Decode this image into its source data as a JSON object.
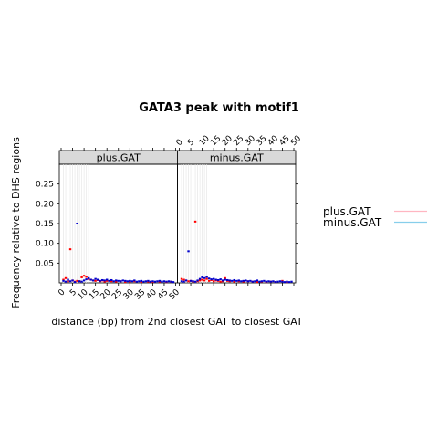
{
  "chart_data": {
    "type": "scatter",
    "title": "GATA3 peak with motif1",
    "xlabel": "distance (bp) from 2nd closest GAT to closest GAT",
    "ylabel": "Frequency relative to DHS regions",
    "xlim": [
      0,
      50
    ],
    "ylim": [
      0,
      0.3
    ],
    "x_ticks": [
      "0",
      "5",
      "10",
      "15",
      "20",
      "25",
      "30",
      "35",
      "40",
      "45",
      "50"
    ],
    "y_ticks": [
      "0.05",
      "0.10",
      "0.15",
      "0.20",
      "0.25"
    ],
    "y_tick_values": [
      0.05,
      0.1,
      0.15,
      0.2,
      0.25
    ],
    "panels": [
      {
        "strip": "plus.GAT",
        "series": [
          {
            "color": "#ff0000",
            "points": [
              [
                1,
                0.008
              ],
              [
                2,
                0.012
              ],
              [
                3,
                0.004
              ],
              [
                4,
                0.085
              ],
              [
                5,
                0.006
              ],
              [
                6,
                0.003
              ],
              [
                7,
                0.005
              ],
              [
                8,
                0.004
              ],
              [
                9,
                0.014
              ],
              [
                10,
                0.018
              ],
              [
                11,
                0.015
              ],
              [
                12,
                0.01
              ],
              [
                13,
                0.008
              ],
              [
                14,
                0.006
              ],
              [
                15,
                0.005
              ],
              [
                16,
                0.007
              ],
              [
                17,
                0.004
              ],
              [
                18,
                0.006
              ],
              [
                19,
                0.003
              ],
              [
                20,
                0.005
              ],
              [
                22,
                0.004
              ],
              [
                24,
                0.003
              ],
              [
                26,
                0.004
              ],
              [
                28,
                0.002
              ],
              [
                30,
                0.003
              ],
              [
                32,
                0.004
              ],
              [
                35,
                0.002
              ],
              [
                38,
                0.003
              ],
              [
                40,
                0.002
              ],
              [
                43,
                0.003
              ],
              [
                46,
                0.002
              ],
              [
                48,
                0.003
              ]
            ]
          },
          {
            "color": "#0000cc",
            "points": [
              [
                1,
                0.005
              ],
              [
                2,
                0.003
              ],
              [
                3,
                0.008
              ],
              [
                4,
                0.004
              ],
              [
                5,
                0.006
              ],
              [
                6,
                0.002
              ],
              [
                7,
                0.15
              ],
              [
                8,
                0.004
              ],
              [
                9,
                0.003
              ],
              [
                10,
                0.006
              ],
              [
                11,
                0.009
              ],
              [
                12,
                0.012
              ],
              [
                13,
                0.008
              ],
              [
                14,
                0.006
              ],
              [
                15,
                0.01
              ],
              [
                16,
                0.008
              ],
              [
                17,
                0.005
              ],
              [
                18,
                0.007
              ],
              [
                19,
                0.006
              ],
              [
                20,
                0.008
              ],
              [
                21,
                0.005
              ],
              [
                22,
                0.007
              ],
              [
                23,
                0.004
              ],
              [
                24,
                0.006
              ],
              [
                25,
                0.005
              ],
              [
                26,
                0.004
              ],
              [
                27,
                0.006
              ],
              [
                28,
                0.005
              ],
              [
                29,
                0.004
              ],
              [
                30,
                0.005
              ],
              [
                31,
                0.004
              ],
              [
                32,
                0.006
              ],
              [
                33,
                0.003
              ],
              [
                34,
                0.004
              ],
              [
                35,
                0.005
              ],
              [
                36,
                0.003
              ],
              [
                37,
                0.004
              ],
              [
                38,
                0.005
              ],
              [
                39,
                0.003
              ],
              [
                40,
                0.004
              ],
              [
                41,
                0.003
              ],
              [
                42,
                0.004
              ],
              [
                43,
                0.005
              ],
              [
                44,
                0.003
              ],
              [
                45,
                0.004
              ],
              [
                46,
                0.003
              ],
              [
                47,
                0.004
              ],
              [
                48,
                0.003
              ],
              [
                49,
                0.002
              ]
            ]
          }
        ]
      },
      {
        "strip": "minus.GAT",
        "series": [
          {
            "color": "#ff0000",
            "points": [
              [
                1,
                0.01
              ],
              [
                2,
                0.008
              ],
              [
                3,
                0.006
              ],
              [
                4,
                0.004
              ],
              [
                5,
                0.005
              ],
              [
                6,
                0.003
              ],
              [
                7,
                0.155
              ],
              [
                8,
                0.004
              ],
              [
                9,
                0.006
              ],
              [
                10,
                0.008
              ],
              [
                11,
                0.006
              ],
              [
                12,
                0.01
              ],
              [
                13,
                0.005
              ],
              [
                14,
                0.007
              ],
              [
                15,
                0.004
              ],
              [
                16,
                0.006
              ],
              [
                17,
                0.005
              ],
              [
                18,
                0.003
              ],
              [
                19,
                0.004
              ],
              [
                20,
                0.012
              ],
              [
                21,
                0.005
              ],
              [
                22,
                0.004
              ],
              [
                24,
                0.003
              ],
              [
                26,
                0.004
              ],
              [
                28,
                0.003
              ],
              [
                30,
                0.004
              ],
              [
                32,
                0.003
              ],
              [
                34,
                0.002
              ],
              [
                36,
                0.003
              ],
              [
                38,
                0.002
              ],
              [
                40,
                0.003
              ],
              [
                42,
                0.002
              ],
              [
                45,
                0.005
              ],
              [
                47,
                0.002
              ]
            ]
          },
          {
            "color": "#0000cc",
            "points": [
              [
                1,
                0.004
              ],
              [
                2,
                0.003
              ],
              [
                3,
                0.006
              ],
              [
                4,
                0.08
              ],
              [
                5,
                0.005
              ],
              [
                6,
                0.004
              ],
              [
                7,
                0.003
              ],
              [
                8,
                0.006
              ],
              [
                9,
                0.01
              ],
              [
                10,
                0.014
              ],
              [
                11,
                0.012
              ],
              [
                12,
                0.015
              ],
              [
                13,
                0.011
              ],
              [
                14,
                0.009
              ],
              [
                15,
                0.01
              ],
              [
                16,
                0.008
              ],
              [
                17,
                0.007
              ],
              [
                18,
                0.009
              ],
              [
                19,
                0.006
              ],
              [
                20,
                0.008
              ],
              [
                21,
                0.007
              ],
              [
                22,
                0.006
              ],
              [
                23,
                0.005
              ],
              [
                24,
                0.007
              ],
              [
                25,
                0.005
              ],
              [
                26,
                0.006
              ],
              [
                27,
                0.004
              ],
              [
                28,
                0.005
              ],
              [
                29,
                0.006
              ],
              [
                30,
                0.004
              ],
              [
                31,
                0.005
              ],
              [
                32,
                0.003
              ],
              [
                33,
                0.004
              ],
              [
                34,
                0.006
              ],
              [
                35,
                0.003
              ],
              [
                36,
                0.004
              ],
              [
                37,
                0.005
              ],
              [
                38,
                0.003
              ],
              [
                39,
                0.004
              ],
              [
                40,
                0.003
              ],
              [
                41,
                0.004
              ],
              [
                42,
                0.002
              ],
              [
                43,
                0.003
              ],
              [
                44,
                0.004
              ],
              [
                45,
                0.003
              ],
              [
                46,
                0.002
              ],
              [
                47,
                0.003
              ],
              [
                48,
                0.002
              ],
              [
                49,
                0.003
              ]
            ]
          }
        ]
      }
    ],
    "legend": {
      "placement": "right",
      "entries": [
        {
          "label": "plus.GAT",
          "color": "#ffb6c1"
        },
        {
          "label": "minus.GAT",
          "color": "#87ceeb"
        }
      ]
    }
  }
}
